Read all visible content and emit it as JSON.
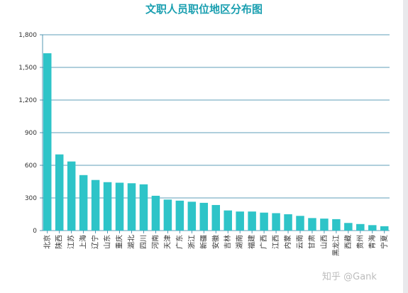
{
  "chart_data": {
    "type": "bar",
    "title": "文职人员职位地区分布图",
    "xlabel": "",
    "ylabel": "",
    "ylim": [
      0,
      1800
    ],
    "yticks": [
      0,
      300,
      600,
      900,
      1200,
      1500,
      1800
    ],
    "ytick_labels": [
      "0",
      "300",
      "600",
      "900",
      "1,200",
      "1,500",
      "1,800"
    ],
    "grid": true,
    "bar_color": "#2ec4c8",
    "categories": [
      "北京",
      "陕西",
      "江苏",
      "上海",
      "辽宁",
      "山东",
      "重庆",
      "湖北",
      "四川",
      "河南",
      "天津",
      "广东",
      "浙江",
      "新疆",
      "安徽",
      "吉林",
      "湖南",
      "福建",
      "广西",
      "江西",
      "内蒙",
      "云南",
      "甘肃",
      "山西",
      "黑龙江",
      "西藏",
      "贵州",
      "青海",
      "宁夏"
    ],
    "values": [
      1630,
      700,
      635,
      510,
      465,
      445,
      440,
      435,
      425,
      320,
      285,
      275,
      265,
      255,
      235,
      185,
      175,
      175,
      165,
      160,
      150,
      135,
      115,
      110,
      105,
      70,
      60,
      50,
      40
    ]
  },
  "watermark": "知乎 @Gank"
}
